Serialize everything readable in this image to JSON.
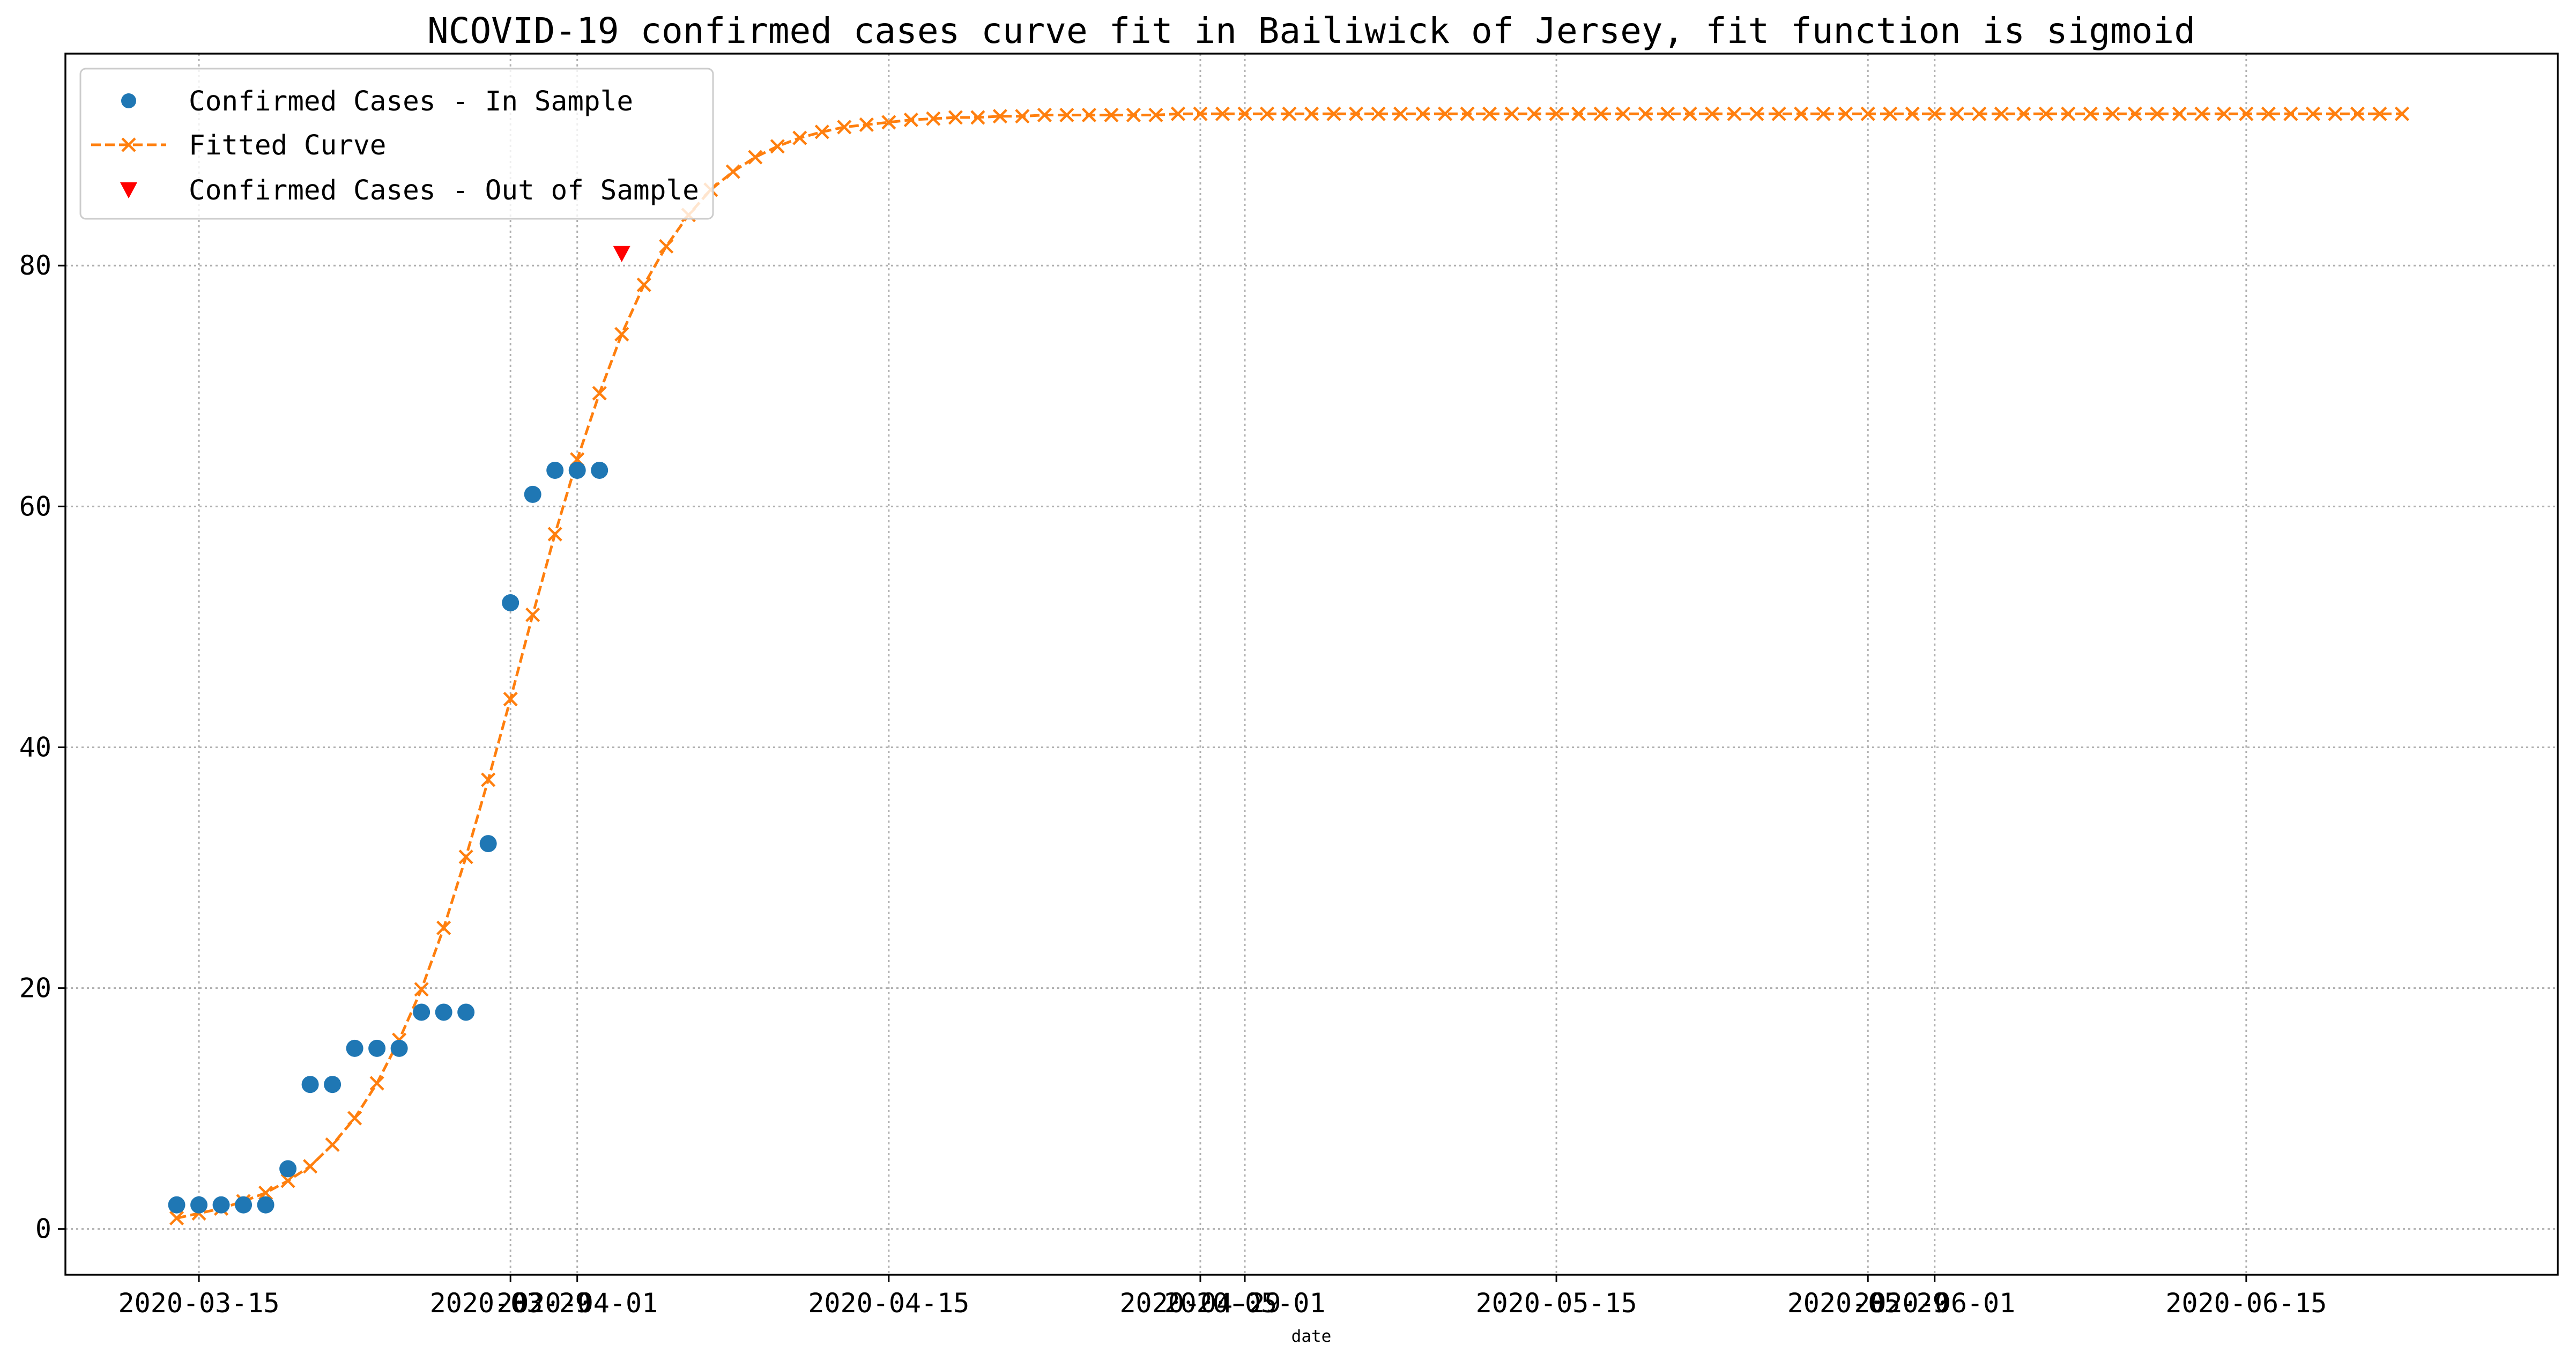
{
  "chart_data": {
    "type": "line",
    "title": "NCOVID-19 confirmed cases curve fit in Bailiwick of Jersey, fit function is sigmoid",
    "xlabel": "date",
    "ylabel": "",
    "x_axis": {
      "type": "date",
      "range": [
        "2020-03-09",
        "2020-06-29"
      ],
      "ticks": [
        {
          "date": "2020-03-15",
          "label": "2020-03-15"
        },
        {
          "date": "2020-03-29",
          "label": "2020-03-29"
        },
        {
          "date": "2020-04-01",
          "label": "2020-04-01"
        },
        {
          "date": "2020-04-15",
          "label": "2020-04-15"
        },
        {
          "date": "2020-04-29",
          "label": "2020-04-29"
        },
        {
          "date": "2020-05-01",
          "label": "2020-05-01"
        },
        {
          "date": "2020-05-15",
          "label": "2020-05-15"
        },
        {
          "date": "2020-05-29",
          "label": "2020-05-29"
        },
        {
          "date": "2020-06-01",
          "label": "2020-06-01"
        },
        {
          "date": "2020-06-15",
          "label": "2020-06-15"
        }
      ]
    },
    "y_axis": {
      "range": [
        -3.8,
        97.6
      ],
      "ticks": [
        0,
        20,
        40,
        60,
        80
      ]
    },
    "grid": true,
    "legend_position": "top-left",
    "in_sample": {
      "name": "Confirmed Cases - In Sample",
      "color": "#1f77b4",
      "marker": "circle",
      "points": [
        {
          "x": "2020-03-14",
          "y": 2
        },
        {
          "x": "2020-03-15",
          "y": 2
        },
        {
          "x": "2020-03-16",
          "y": 2
        },
        {
          "x": "2020-03-17",
          "y": 2
        },
        {
          "x": "2020-03-18",
          "y": 2
        },
        {
          "x": "2020-03-19",
          "y": 5
        },
        {
          "x": "2020-03-20",
          "y": 12
        },
        {
          "x": "2020-03-21",
          "y": 12
        },
        {
          "x": "2020-03-22",
          "y": 15
        },
        {
          "x": "2020-03-23",
          "y": 15
        },
        {
          "x": "2020-03-24",
          "y": 15
        },
        {
          "x": "2020-03-25",
          "y": 18
        },
        {
          "x": "2020-03-26",
          "y": 18
        },
        {
          "x": "2020-03-27",
          "y": 18
        },
        {
          "x": "2020-03-28",
          "y": 32
        },
        {
          "x": "2020-03-29",
          "y": 52
        },
        {
          "x": "2020-03-30",
          "y": 61
        },
        {
          "x": "2020-03-31",
          "y": 63
        },
        {
          "x": "2020-04-01",
          "y": 63
        },
        {
          "x": "2020-04-02",
          "y": 63
        }
      ]
    },
    "fitted": {
      "name": "Fitted Curve",
      "color": "#ff7f0e",
      "marker": "x",
      "line_style": "dashed",
      "start_date": "2020-03-14",
      "values": [
        0.9,
        1.3,
        1.7,
        2.3,
        3.0,
        4.0,
        5.2,
        7.0,
        9.2,
        12.1,
        15.7,
        19.9,
        25.0,
        30.9,
        37.3,
        44.0,
        51.0,
        57.7,
        63.9,
        69.4,
        74.3,
        78.4,
        81.6,
        84.2,
        86.3,
        87.8,
        89.0,
        89.9,
        90.6,
        91.1,
        91.5,
        91.7,
        91.9,
        92.1,
        92.2,
        92.3,
        92.3,
        92.4,
        92.4,
        92.5,
        92.5,
        92.5,
        92.5,
        92.5,
        92.5,
        92.6,
        92.6,
        92.6,
        92.6,
        92.6,
        92.6,
        92.6,
        92.6,
        92.6,
        92.6,
        92.6,
        92.6,
        92.6,
        92.6,
        92.6,
        92.6,
        92.6,
        92.6,
        92.6,
        92.6,
        92.6,
        92.6,
        92.6,
        92.6,
        92.6,
        92.6,
        92.6,
        92.6,
        92.6,
        92.6,
        92.6,
        92.6,
        92.6,
        92.6,
        92.6,
        92.6,
        92.6,
        92.6,
        92.6,
        92.6,
        92.6,
        92.6,
        92.6,
        92.6,
        92.6,
        92.6,
        92.6,
        92.6,
        92.6,
        92.6,
        92.6,
        92.6,
        92.6,
        92.6,
        92.6,
        92.6
      ]
    },
    "out_of_sample": {
      "name": "Confirmed Cases - Out of Sample",
      "color": "#ff0000",
      "marker": "triangle-down",
      "points": [
        {
          "x": "2020-04-03",
          "y": 81
        }
      ]
    }
  }
}
